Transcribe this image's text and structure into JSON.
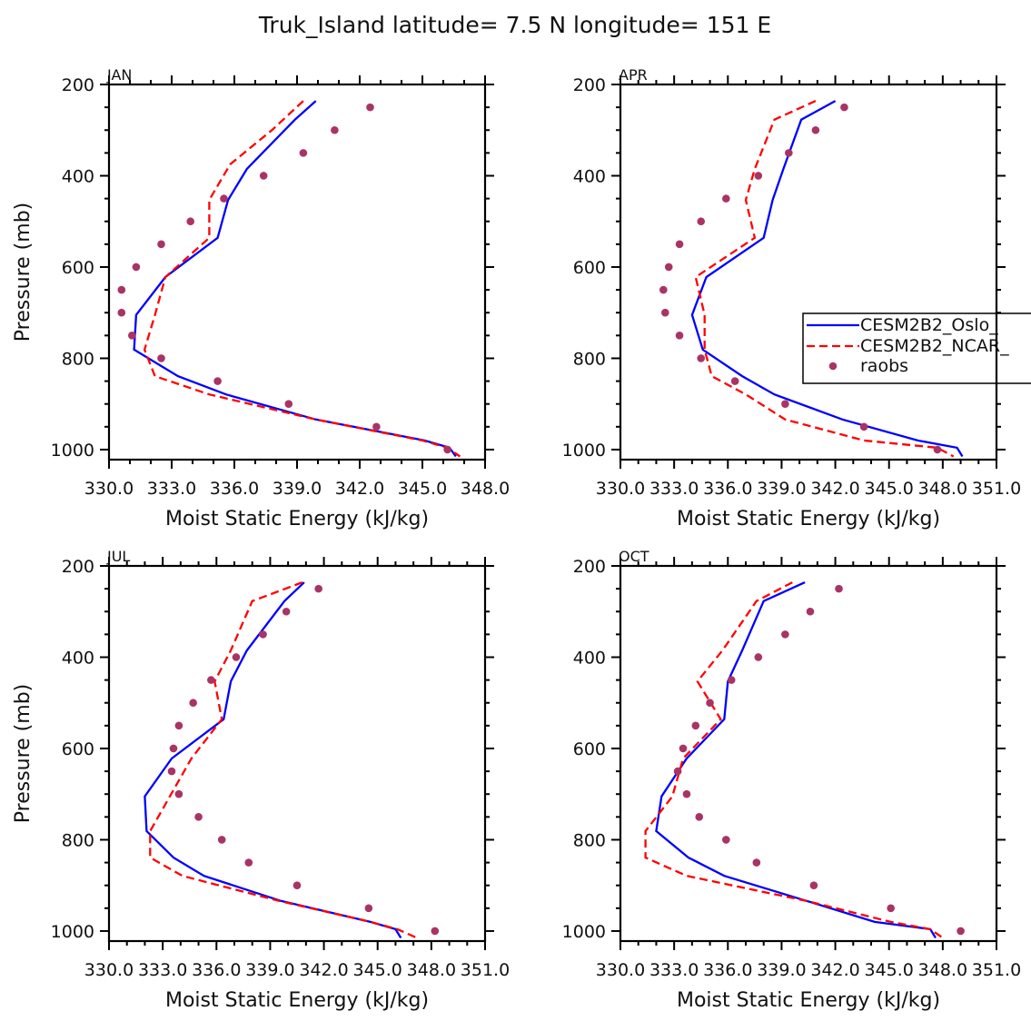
{
  "figure": {
    "title": "Truk_Island  latitude= 7.5 N longitude= 151 E"
  },
  "chart_data": [
    {
      "type": "line",
      "panel": "JAN",
      "title": "JAN",
      "xlabel": "Moist Static Energy (kJ/kg)",
      "ylabel": "Pressure (mb)",
      "xlim": [
        330,
        348
      ],
      "ylim": [
        200,
        1022
      ],
      "y_inverted": true,
      "xticks": [
        330,
        333,
        336,
        339,
        342,
        345,
        348
      ],
      "xtick_labels": [
        "330.0",
        "333.0",
        "336.0",
        "339.0",
        "342.0",
        "345.0",
        "348.0"
      ],
      "yticks": [
        200,
        400,
        600,
        800,
        1000
      ],
      "ytick_labels": [
        "200",
        "400",
        "600",
        "800",
        "1000"
      ],
      "legend": false,
      "series": [
        {
          "name": "CESM2B2_Oslo_",
          "style": "solid",
          "color": "#0000ff",
          "p": [
            236,
            277,
            385,
            453,
            536,
            622,
            705,
            781,
            839,
            879,
            934,
            980,
            996,
            1015
          ],
          "x": [
            339.9,
            338.9,
            336.6,
            335.7,
            335.2,
            332.7,
            331.3,
            331.2,
            333.3,
            335.6,
            339.9,
            345.1,
            346.3,
            346.6
          ]
        },
        {
          "name": "CESM2B2_NCAR_",
          "style": "dashed",
          "color": "#ff0000",
          "p": [
            236,
            300,
            375,
            453,
            536,
            622,
            705,
            781,
            839,
            879,
            934,
            980,
            996,
            1015
          ],
          "x": [
            339.3,
            337.8,
            335.8,
            334.8,
            334.8,
            332.7,
            332.2,
            331.7,
            332.2,
            334.8,
            339.9,
            345.0,
            346.2,
            346.8
          ]
        },
        {
          "name": "raobs",
          "style": "markers",
          "color": "#aa3366",
          "p": [
            250,
            300,
            350,
            400,
            450,
            500,
            550,
            600,
            650,
            700,
            750,
            800,
            850,
            900,
            950,
            1000
          ],
          "x": [
            342.5,
            340.8,
            339.3,
            337.4,
            335.5,
            333.9,
            332.5,
            331.3,
            330.6,
            330.6,
            331.1,
            332.5,
            335.2,
            338.6,
            342.8,
            346.2
          ]
        }
      ]
    },
    {
      "type": "line",
      "panel": "APR",
      "title": "APR",
      "xlabel": "Moist Static Energy (kJ/kg)",
      "ylabel": "",
      "xlim": [
        330,
        351
      ],
      "ylim": [
        200,
        1022
      ],
      "y_inverted": true,
      "xticks": [
        330,
        333,
        336,
        339,
        342,
        345,
        348,
        351
      ],
      "xtick_labels": [
        "330.0",
        "333.0",
        "336.0",
        "339.0",
        "342.0",
        "345.0",
        "348.0",
        "351.0"
      ],
      "yticks": [
        200,
        400,
        600,
        800,
        1000
      ],
      "ytick_labels": [
        "200",
        "400",
        "600",
        "800",
        "1000"
      ],
      "legend": true,
      "legend_entries": [
        "CESM2B2_Oslo_",
        "CESM2B2_NCAR_",
        "raobs"
      ],
      "series": [
        {
          "name": "CESM2B2_Oslo_",
          "style": "solid",
          "color": "#0000ff",
          "p": [
            236,
            277,
            385,
            453,
            536,
            622,
            705,
            781,
            839,
            879,
            934,
            980,
            996,
            1015
          ],
          "x": [
            342.0,
            340.1,
            339.1,
            338.5,
            338.0,
            334.8,
            334.0,
            334.6,
            336.8,
            338.6,
            342.4,
            346.6,
            348.8,
            349.1
          ]
        },
        {
          "name": "CESM2B2_NCAR_",
          "style": "dashed",
          "color": "#ff0000",
          "p": [
            236,
            277,
            385,
            453,
            536,
            622,
            705,
            781,
            839,
            879,
            934,
            980,
            996,
            1015
          ],
          "x": [
            340.9,
            338.6,
            337.5,
            337.0,
            337.5,
            334.2,
            334.7,
            334.7,
            335.1,
            337.0,
            339.2,
            343.6,
            347.7,
            348.6
          ]
        },
        {
          "name": "raobs",
          "style": "markers",
          "color": "#aa3366",
          "p": [
            250,
            300,
            350,
            400,
            450,
            500,
            550,
            600,
            650,
            700,
            750,
            800,
            850,
            900,
            950,
            1000
          ],
          "x": [
            342.5,
            340.9,
            339.4,
            337.7,
            335.9,
            334.5,
            333.3,
            332.7,
            332.4,
            332.5,
            333.3,
            334.5,
            336.4,
            339.2,
            343.6,
            347.7
          ]
        }
      ]
    },
    {
      "type": "line",
      "panel": "JUL",
      "title": "JUL",
      "xlabel": "Moist Static Energy (kJ/kg)",
      "ylabel": "Pressure (mb)",
      "xlim": [
        330,
        351
      ],
      "ylim": [
        200,
        1022
      ],
      "y_inverted": true,
      "xticks": [
        330,
        333,
        336,
        339,
        342,
        345,
        348,
        351
      ],
      "xtick_labels": [
        "330.0",
        "333.0",
        "336.0",
        "339.0",
        "342.0",
        "345.0",
        "348.0",
        "351.0"
      ],
      "yticks": [
        200,
        400,
        600,
        800,
        1000
      ],
      "ytick_labels": [
        "200",
        "400",
        "600",
        "800",
        "1000"
      ],
      "legend": false,
      "series": [
        {
          "name": "CESM2B2_Oslo_",
          "style": "solid",
          "color": "#0000ff",
          "p": [
            236,
            277,
            385,
            453,
            536,
            622,
            705,
            781,
            839,
            879,
            934,
            980,
            996,
            1015
          ],
          "x": [
            340.9,
            339.8,
            337.7,
            336.8,
            336.4,
            333.5,
            332.0,
            332.1,
            333.6,
            335.3,
            339.6,
            344.6,
            346.0,
            346.3
          ]
        },
        {
          "name": "CESM2B2_NCAR_",
          "style": "dashed",
          "color": "#ff0000",
          "p": [
            236,
            277,
            385,
            453,
            536,
            622,
            705,
            781,
            839,
            879,
            934,
            980,
            996,
            1015
          ],
          "x": [
            340.8,
            338.0,
            336.8,
            335.9,
            336.3,
            334.6,
            333.4,
            332.3,
            332.3,
            334.1,
            339.5,
            344.6,
            346.1,
            347.2
          ]
        },
        {
          "name": "raobs",
          "style": "markers",
          "color": "#aa3366",
          "p": [
            250,
            300,
            350,
            400,
            450,
            500,
            550,
            600,
            650,
            700,
            750,
            800,
            850,
            900,
            950,
            1000
          ],
          "x": [
            341.7,
            339.9,
            338.6,
            337.1,
            335.7,
            334.7,
            333.9,
            333.6,
            333.5,
            333.9,
            335.0,
            336.3,
            337.8,
            340.5,
            344.5,
            348.2
          ]
        }
      ]
    },
    {
      "type": "line",
      "panel": "OCT",
      "title": "OCT",
      "xlabel": "Moist Static Energy (kJ/kg)",
      "ylabel": "",
      "xlim": [
        330,
        351
      ],
      "ylim": [
        200,
        1022
      ],
      "y_inverted": true,
      "xticks": [
        330,
        333,
        336,
        339,
        342,
        345,
        348,
        351
      ],
      "xtick_labels": [
        "330.0",
        "333.0",
        "336.0",
        "339.0",
        "342.0",
        "345.0",
        "348.0",
        "351.0"
      ],
      "yticks": [
        200,
        400,
        600,
        800,
        1000
      ],
      "ytick_labels": [
        "200",
        "400",
        "600",
        "800",
        "1000"
      ],
      "legend": false,
      "series": [
        {
          "name": "CESM2B2_Oslo_",
          "style": "solid",
          "color": "#0000ff",
          "p": [
            236,
            277,
            385,
            453,
            536,
            622,
            705,
            781,
            839,
            879,
            934,
            980,
            996,
            1015
          ],
          "x": [
            340.3,
            338.0,
            336.8,
            336.0,
            335.8,
            333.7,
            332.3,
            332.0,
            333.8,
            335.8,
            340.4,
            344.2,
            347.3,
            347.6
          ]
        },
        {
          "name": "CESM2B2_NCAR_",
          "style": "dashed",
          "color": "#ff0000",
          "p": [
            236,
            277,
            385,
            453,
            536,
            622,
            705,
            781,
            839,
            879,
            934,
            980,
            996,
            1015
          ],
          "x": [
            339.6,
            337.6,
            335.7,
            334.3,
            335.6,
            333.5,
            332.9,
            331.4,
            331.4,
            333.7,
            340.4,
            345.1,
            347.3,
            348.0
          ]
        },
        {
          "name": "raobs",
          "style": "markers",
          "color": "#aa3366",
          "p": [
            250,
            300,
            350,
            400,
            450,
            500,
            550,
            600,
            650,
            700,
            750,
            800,
            850,
            900,
            950,
            1000
          ],
          "x": [
            342.2,
            340.6,
            339.2,
            337.7,
            336.2,
            335.0,
            334.2,
            333.5,
            333.2,
            333.7,
            334.4,
            335.9,
            337.6,
            340.8,
            345.1,
            349.0
          ]
        }
      ]
    }
  ]
}
